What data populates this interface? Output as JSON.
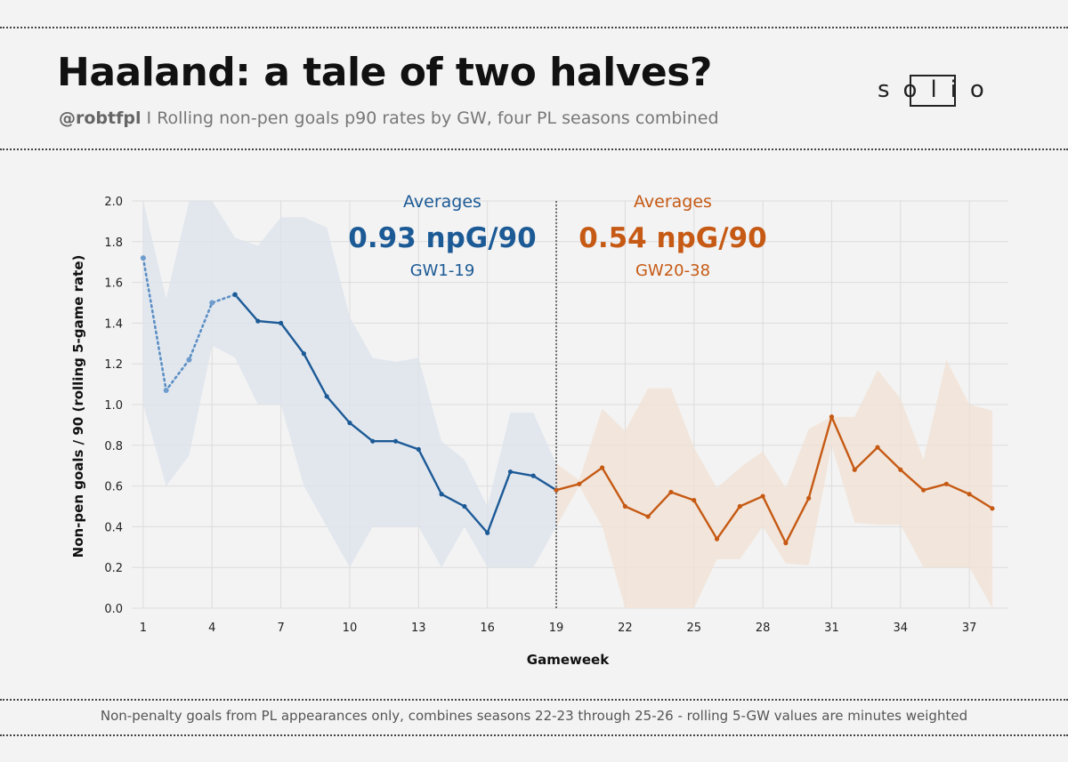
{
  "header": {
    "title": "Haaland: a tale of two halves?",
    "handle": "@robtfpl",
    "subtitle": "I Rolling non-pen goals p90 rates by GW, four PL seasons combined"
  },
  "logo": {
    "text": "solio"
  },
  "footnote": "Non-penalty goals from PL appearances only, combines seasons 22-23 through 25-26  - rolling 5-GW values are minutes weighted",
  "colors": {
    "first_half": "#1c5a96",
    "second_half": "#c65a14",
    "first_band": "#dde3ec",
    "second_band": "#f1e2d6",
    "grid": "#dcdcdc"
  },
  "annotations": {
    "first": {
      "heading": "Averages",
      "value": "0.93 npG/90",
      "range": "GW1-19"
    },
    "second": {
      "heading": "Averages",
      "value": "0.54 npG/90",
      "range": "GW20-38"
    }
  },
  "chart_data": {
    "type": "line",
    "title": "Haaland: a tale of two halves?",
    "xlabel": "Gameweek",
    "ylabel": "Non-pen goals / 90  (rolling 5-game rate)",
    "xlim": [
      0.5,
      38.7
    ],
    "ylim": [
      0,
      2.0
    ],
    "xticks": [
      1,
      4,
      7,
      10,
      13,
      16,
      19,
      22,
      25,
      28,
      31,
      34,
      37
    ],
    "yticks": [
      "0.0",
      "0.2",
      "0.4",
      "0.6",
      "0.8",
      "1.0",
      "1.2",
      "1.4",
      "1.6",
      "1.8",
      "2.0"
    ],
    "divider_gw": 19,
    "series": [
      {
        "name": "GW1-19 (dotted, partial rolling window)",
        "x": [
          1,
          2,
          3,
          4,
          5
        ],
        "y": [
          1.72,
          1.07,
          1.22,
          1.5,
          1.54
        ]
      },
      {
        "name": "GW1-19",
        "x": [
          5,
          6,
          7,
          8,
          9,
          10,
          11,
          12,
          13,
          14,
          15,
          16,
          17,
          18,
          19
        ],
        "y": [
          1.54,
          1.41,
          1.4,
          1.25,
          1.04,
          0.91,
          0.82,
          0.82,
          0.78,
          0.56,
          0.5,
          0.37,
          0.67,
          0.65,
          0.58
        ]
      },
      {
        "name": "GW20-38",
        "x": [
          19,
          20,
          21,
          22,
          23,
          24,
          25,
          26,
          27,
          28,
          29,
          30,
          31,
          32,
          33,
          34,
          35,
          36,
          37,
          38
        ],
        "y": [
          0.58,
          0.61,
          0.69,
          0.5,
          0.45,
          0.57,
          0.53,
          0.34,
          0.5,
          0.55,
          0.32,
          0.54,
          0.94,
          0.68,
          0.79,
          0.68,
          0.58,
          0.61,
          0.56,
          0.49
        ]
      }
    ],
    "bands": [
      {
        "name": "GW1-19 range",
        "x": [
          1,
          2,
          3,
          4,
          5,
          6,
          7,
          8,
          9,
          10,
          11,
          12,
          13,
          14,
          15,
          16,
          17,
          18,
          19
        ],
        "lower": [
          1.0,
          0.6,
          0.75,
          1.29,
          1.23,
          1.0,
          1.0,
          0.6,
          0.4,
          0.2,
          0.4,
          0.4,
          0.4,
          0.2,
          0.4,
          0.2,
          0.2,
          0.2,
          0.4
        ],
        "upper": [
          2.0,
          1.52,
          2.0,
          2.0,
          1.82,
          1.78,
          1.92,
          1.92,
          1.87,
          1.43,
          1.23,
          1.21,
          1.23,
          0.82,
          0.73,
          0.5,
          0.96,
          0.96,
          0.71
        ]
      },
      {
        "name": "GW20-38 range",
        "x": [
          19,
          20,
          21,
          22,
          23,
          24,
          25,
          26,
          27,
          28,
          29,
          30,
          31,
          32,
          33,
          34,
          35,
          36,
          37,
          38
        ],
        "lower": [
          0.4,
          0.6,
          0.4,
          0.0,
          0.0,
          0.0,
          0.0,
          0.24,
          0.24,
          0.4,
          0.22,
          0.21,
          0.8,
          0.42,
          0.41,
          0.41,
          0.2,
          0.2,
          0.2,
          0.0
        ],
        "upper": [
          0.71,
          0.63,
          0.98,
          0.87,
          1.08,
          1.08,
          0.79,
          0.59,
          0.69,
          0.77,
          0.59,
          0.88,
          0.94,
          0.94,
          1.17,
          1.03,
          0.73,
          1.22,
          1.0,
          0.97
        ]
      }
    ]
  }
}
